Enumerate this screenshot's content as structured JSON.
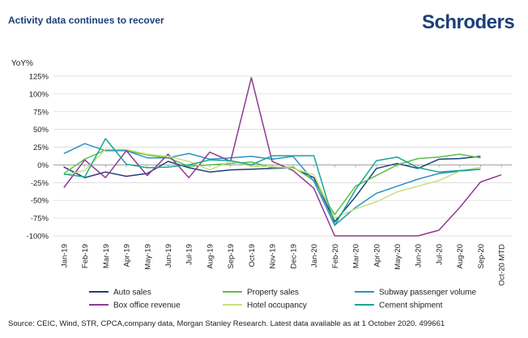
{
  "header": {
    "title": "Activity data continues to recover",
    "brand": "Schroders"
  },
  "footer": {
    "source": "Source: CEIC, Wind, STR, CPCA,company data, Morgan Stanley Research. Latest data available as at 1 October 2020. 499661"
  },
  "chart_data": {
    "type": "line",
    "title": "Activity data continues to recover",
    "ylabel": "YoY%",
    "ylim": [
      -100,
      125
    ],
    "yticks": [
      125,
      100,
      75,
      50,
      25,
      0,
      -25,
      -50,
      -75,
      -100
    ],
    "ytick_labels": [
      "125%",
      "100%",
      "75%",
      "50%",
      "25%",
      "0%",
      "-25%",
      "-50%",
      "-75%",
      "-100%"
    ],
    "categories": [
      "Jan-19",
      "Feb-19",
      "Mar-19",
      "Apr-19",
      "May-19",
      "Jun-19",
      "Jul-19",
      "Aug-19",
      "Sep-19",
      "Oct-19",
      "Nov-19",
      "Dec-19",
      "Jan-20",
      "Feb-20",
      "Mar-20",
      "Apr-20",
      "May-20",
      "Jun-20",
      "Jul-20",
      "Aug-20",
      "Sep-20",
      "Oct-20 MTD"
    ],
    "grid": "horizontal",
    "legend_position": "bottom",
    "series": [
      {
        "name": "Auto sales",
        "color": "#1c3f7a",
        "values": [
          -3,
          -18,
          -10,
          -16,
          -12,
          5,
          -4,
          -10,
          -7,
          -6,
          -5,
          -4,
          -18,
          -80,
          -45,
          -5,
          2,
          -5,
          8,
          9,
          12,
          null
        ]
      },
      {
        "name": "Property sales",
        "color": "#5cbf4a",
        "values": [
          -12,
          8,
          21,
          20,
          14,
          10,
          -2,
          0,
          2,
          4,
          -4,
          -3,
          -22,
          -70,
          -30,
          -15,
          0,
          9,
          11,
          15,
          10,
          null
        ]
      },
      {
        "name": "Subway passenger volume",
        "color": "#2b93c4",
        "values": [
          16,
          30,
          20,
          20,
          10,
          10,
          16,
          8,
          10,
          12,
          8,
          12,
          -23,
          -85,
          -60,
          -40,
          -30,
          -20,
          -12,
          -9,
          -6,
          null
        ]
      },
      {
        "name": "Box office revenue",
        "color": "#8e3a8f",
        "values": [
          -32,
          7,
          -18,
          20,
          -15,
          15,
          -18,
          18,
          5,
          123,
          5,
          -8,
          -33,
          -100,
          -100,
          -100,
          -100,
          -100,
          -92,
          -60,
          -24,
          -14
        ]
      },
      {
        "name": "Hotel occupancy",
        "color": "#c5e07e",
        "values": [
          -14,
          -8,
          22,
          22,
          15,
          12,
          5,
          -7,
          5,
          -2,
          -2,
          -5,
          -14,
          -75,
          -62,
          -52,
          -38,
          -30,
          -22,
          -9,
          -3,
          null
        ]
      },
      {
        "name": "Cement shipment",
        "color": "#1aa596",
        "values": [
          -13,
          -17,
          37,
          1,
          -4,
          -3,
          0,
          7,
          6,
          0,
          13,
          13,
          13,
          -85,
          -35,
          6,
          11,
          -4,
          -10,
          -8,
          -6,
          null
        ]
      }
    ]
  }
}
